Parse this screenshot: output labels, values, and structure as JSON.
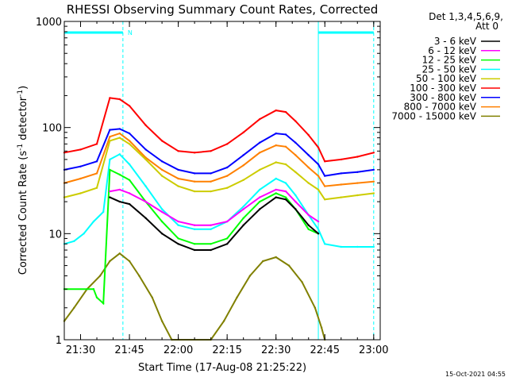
{
  "chart_data": {
    "type": "line",
    "title": "RHESSI Observing Summary Count Rates, Corrected",
    "xlabel": "Start Time (17-Aug-08 21:25:22)",
    "ylabel": "Corrected Count Rate (s",
    "ylabel_sup1": "-1",
    "ylabel_mid": " detector",
    "ylabel_sup2": "-1",
    "ylabel_end": ")",
    "y_scale": "log",
    "xlim": [
      "21:25",
      "23:02"
    ],
    "ylim": [
      1,
      1000
    ],
    "x_ticks": [
      "21:30",
      "21:45",
      "22:00",
      "22:15",
      "22:30",
      "22:45",
      "23:00"
    ],
    "y_ticks": [
      "1",
      "10",
      "100",
      "1000"
    ],
    "legend_header": [
      "Det 1,3,4,5,6,9,",
      "Att 0"
    ],
    "legend_placement": "right",
    "footer_date": "15-Oct-2021 04:55",
    "annotations": {
      "n_marker": "N",
      "night_intervals": [
        [
          "21:25",
          "21:43"
        ],
        [
          "22:43",
          "23:00"
        ]
      ]
    },
    "series": [
      {
        "name": "3 - 6 keV",
        "color": "#000000",
        "points": [
          [
            "21:39",
            22
          ],
          [
            "21:42",
            20
          ],
          [
            "21:45",
            19
          ],
          [
            "21:50",
            14
          ],
          [
            "21:55",
            10
          ],
          [
            "22:00",
            8
          ],
          [
            "22:05",
            7
          ],
          [
            "22:10",
            7
          ],
          [
            "22:15",
            8
          ],
          [
            "22:20",
            12
          ],
          [
            "22:25",
            17
          ],
          [
            "22:30",
            22
          ],
          [
            "22:33",
            21
          ],
          [
            "22:36",
            17
          ],
          [
            "22:40",
            12
          ],
          [
            "22:43",
            10
          ]
        ]
      },
      {
        "name": "6 - 12 keV",
        "color": "#ff00ff",
        "points": [
          [
            "21:39",
            25
          ],
          [
            "21:42",
            26
          ],
          [
            "21:45",
            24
          ],
          [
            "21:50",
            20
          ],
          [
            "21:55",
            16
          ],
          [
            "22:00",
            13
          ],
          [
            "22:05",
            12
          ],
          [
            "22:10",
            12
          ],
          [
            "22:15",
            13
          ],
          [
            "22:20",
            17
          ],
          [
            "22:25",
            22
          ],
          [
            "22:30",
            26
          ],
          [
            "22:33",
            25
          ],
          [
            "22:36",
            20
          ],
          [
            "22:40",
            15
          ],
          [
            "22:43",
            13
          ]
        ]
      },
      {
        "name": "12 - 25 keV",
        "color": "#00ff00",
        "points": [
          [
            "21:25",
            3
          ],
          [
            "21:34",
            3
          ],
          [
            "21:35",
            2.5
          ],
          [
            "21:37",
            2.2
          ],
          [
            "21:39",
            40
          ],
          [
            "21:42",
            36
          ],
          [
            "21:45",
            32
          ],
          [
            "21:50",
            20
          ],
          [
            "21:55",
            13
          ],
          [
            "22:00",
            9
          ],
          [
            "22:05",
            8
          ],
          [
            "22:10",
            8
          ],
          [
            "22:15",
            9
          ],
          [
            "22:20",
            14
          ],
          [
            "22:25",
            20
          ],
          [
            "22:30",
            24
          ],
          [
            "22:33",
            22
          ],
          [
            "22:36",
            17
          ],
          [
            "22:40",
            11
          ],
          [
            "22:43",
            10
          ]
        ]
      },
      {
        "name": "25 - 50 keV",
        "color": "#00ffff",
        "points": [
          [
            "21:25",
            8
          ],
          [
            "21:28",
            8.5
          ],
          [
            "21:31",
            10
          ],
          [
            "21:34",
            13
          ],
          [
            "21:37",
            16
          ],
          [
            "21:39",
            50
          ],
          [
            "21:42",
            56
          ],
          [
            "21:45",
            45
          ],
          [
            "21:50",
            28
          ],
          [
            "21:55",
            17
          ],
          [
            "22:00",
            12
          ],
          [
            "22:05",
            11
          ],
          [
            "22:10",
            11
          ],
          [
            "22:15",
            13
          ],
          [
            "22:20",
            18
          ],
          [
            "22:25",
            26
          ],
          [
            "22:30",
            33
          ],
          [
            "22:33",
            30
          ],
          [
            "22:36",
            23
          ],
          [
            "22:40",
            15
          ],
          [
            "22:43",
            11
          ],
          [
            "22:45",
            8
          ],
          [
            "22:50",
            7.5
          ],
          [
            "22:55",
            7.5
          ],
          [
            "23:00",
            7.5
          ]
        ]
      },
      {
        "name": "50 - 100 keV",
        "color": "#cccc00",
        "points": [
          [
            "21:25",
            22
          ],
          [
            "21:30",
            24
          ],
          [
            "21:35",
            27
          ],
          [
            "21:39",
            75
          ],
          [
            "21:42",
            80
          ],
          [
            "21:45",
            70
          ],
          [
            "21:50",
            50
          ],
          [
            "21:55",
            35
          ],
          [
            "22:00",
            28
          ],
          [
            "22:05",
            25
          ],
          [
            "22:10",
            25
          ],
          [
            "22:15",
            27
          ],
          [
            "22:20",
            32
          ],
          [
            "22:25",
            40
          ],
          [
            "22:30",
            47
          ],
          [
            "22:33",
            45
          ],
          [
            "22:36",
            38
          ],
          [
            "22:40",
            30
          ],
          [
            "22:43",
            26
          ],
          [
            "22:45",
            21
          ],
          [
            "22:50",
            22
          ],
          [
            "22:55",
            23
          ],
          [
            "23:00",
            24
          ]
        ]
      },
      {
        "name": "100 - 300 keV",
        "color": "#ff0000",
        "points": [
          [
            "21:25",
            58
          ],
          [
            "21:30",
            62
          ],
          [
            "21:35",
            70
          ],
          [
            "21:39",
            190
          ],
          [
            "21:42",
            185
          ],
          [
            "21:45",
            160
          ],
          [
            "21:50",
            105
          ],
          [
            "21:55",
            75
          ],
          [
            "22:00",
            60
          ],
          [
            "22:05",
            58
          ],
          [
            "22:10",
            60
          ],
          [
            "22:15",
            70
          ],
          [
            "22:20",
            90
          ],
          [
            "22:25",
            120
          ],
          [
            "22:30",
            145
          ],
          [
            "22:33",
            140
          ],
          [
            "22:36",
            115
          ],
          [
            "22:40",
            85
          ],
          [
            "22:43",
            65
          ],
          [
            "22:45",
            48
          ],
          [
            "22:50",
            50
          ],
          [
            "22:55",
            53
          ],
          [
            "23:00",
            58
          ]
        ]
      },
      {
        "name": "300 - 800 keV",
        "color": "#0000ff",
        "points": [
          [
            "21:25",
            40
          ],
          [
            "21:30",
            43
          ],
          [
            "21:35",
            48
          ],
          [
            "21:39",
            95
          ],
          [
            "21:42",
            97
          ],
          [
            "21:45",
            88
          ],
          [
            "21:50",
            62
          ],
          [
            "21:55",
            48
          ],
          [
            "22:00",
            40
          ],
          [
            "22:05",
            37
          ],
          [
            "22:10",
            37
          ],
          [
            "22:15",
            42
          ],
          [
            "22:20",
            55
          ],
          [
            "22:25",
            72
          ],
          [
            "22:30",
            88
          ],
          [
            "22:33",
            86
          ],
          [
            "22:36",
            72
          ],
          [
            "22:40",
            55
          ],
          [
            "22:43",
            45
          ],
          [
            "22:45",
            35
          ],
          [
            "22:50",
            37
          ],
          [
            "22:55",
            38
          ],
          [
            "23:00",
            40
          ]
        ]
      },
      {
        "name": "800 - 7000 keV",
        "color": "#ff8000",
        "points": [
          [
            "21:25",
            30
          ],
          [
            "21:30",
            33
          ],
          [
            "21:35",
            37
          ],
          [
            "21:39",
            82
          ],
          [
            "21:42",
            88
          ],
          [
            "21:45",
            75
          ],
          [
            "21:50",
            52
          ],
          [
            "21:55",
            40
          ],
          [
            "22:00",
            33
          ],
          [
            "22:05",
            31
          ],
          [
            "22:10",
            31
          ],
          [
            "22:15",
            35
          ],
          [
            "22:20",
            44
          ],
          [
            "22:25",
            58
          ],
          [
            "22:30",
            68
          ],
          [
            "22:33",
            66
          ],
          [
            "22:36",
            55
          ],
          [
            "22:40",
            42
          ],
          [
            "22:43",
            35
          ],
          [
            "22:45",
            28
          ],
          [
            "22:50",
            29
          ],
          [
            "22:55",
            30
          ],
          [
            "23:00",
            31
          ]
        ]
      },
      {
        "name": "7000 - 15000 keV",
        "color": "#808000",
        "points": [
          [
            "21:25",
            1.5
          ],
          [
            "21:28",
            2
          ],
          [
            "21:32",
            3
          ],
          [
            "21:36",
            4
          ],
          [
            "21:39",
            5.5
          ],
          [
            "21:42",
            6.5
          ],
          [
            "21:45",
            5.5
          ],
          [
            "21:48",
            4
          ],
          [
            "21:52",
            2.5
          ],
          [
            "21:55",
            1.5
          ],
          [
            "21:58",
            1
          ],
          [
            "22:10",
            1
          ],
          [
            "22:14",
            1.5
          ],
          [
            "22:18",
            2.5
          ],
          [
            "22:22",
            4
          ],
          [
            "22:26",
            5.5
          ],
          [
            "22:30",
            6
          ],
          [
            "22:34",
            5
          ],
          [
            "22:38",
            3.5
          ],
          [
            "22:42",
            2
          ],
          [
            "22:44",
            1.3
          ],
          [
            "22:45",
            1
          ]
        ]
      }
    ]
  }
}
